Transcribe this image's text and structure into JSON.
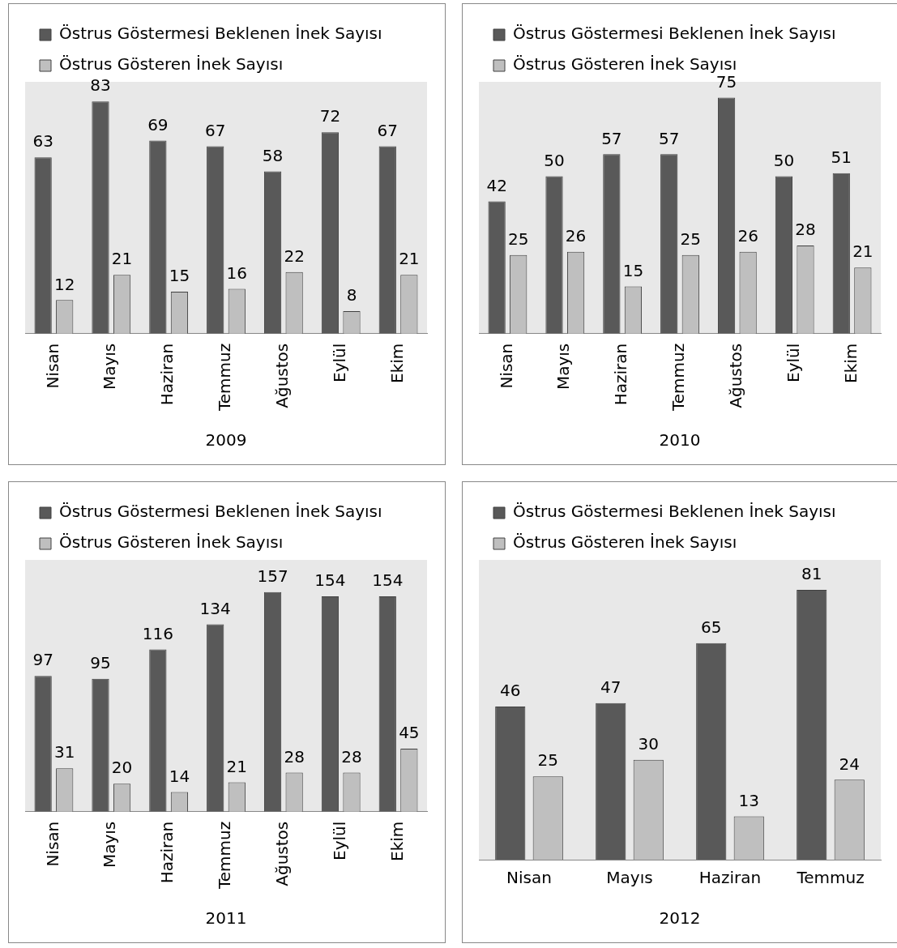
{
  "chart_data": [
    {
      "type": "bar",
      "xlabel": "2009",
      "categories": [
        "Nisan",
        "Mayıs",
        "Haziran",
        "Temmuz",
        "Ağustos",
        "Eylül",
        "Ekim"
      ],
      "series": [
        {
          "name": "Östrus Göstermesi Beklenen İnek Sayısı",
          "color": "#595959",
          "values": [
            63,
            83,
            69,
            67,
            58,
            72,
            67
          ]
        },
        {
          "name": "Östrus Gösteren İnek Sayısı",
          "color": "#bfbfbf",
          "values": [
            12,
            21,
            15,
            16,
            22,
            8,
            21
          ]
        }
      ],
      "data_labels": true,
      "legend": "top",
      "grid": false,
      "tick_labels": "x"
    },
    {
      "type": "bar",
      "xlabel": "2010",
      "categories": [
        "Nisan",
        "Mayıs",
        "Haziran",
        "Temmuz",
        "Ağustos",
        "Eylül",
        "Ekim"
      ],
      "series": [
        {
          "name": "Östrus Göstermesi Beklenen İnek Sayısı",
          "color": "#595959",
          "values": [
            42,
            50,
            57,
            57,
            75,
            50,
            51
          ]
        },
        {
          "name": "Östrus Gösteren İnek Sayısı",
          "color": "#bfbfbf",
          "values": [
            25,
            26,
            15,
            25,
            26,
            28,
            21
          ]
        }
      ],
      "data_labels": true,
      "legend": "top",
      "grid": false,
      "tick_labels": "x"
    },
    {
      "type": "bar",
      "xlabel": "2011",
      "categories": [
        "Nisan",
        "Mayıs",
        "Haziran",
        "Temmuz",
        "Ağustos",
        "Eylül",
        "Ekim"
      ],
      "series": [
        {
          "name": "Östrus Göstermesi Beklenen İnek Sayısı",
          "color": "#595959",
          "values": [
            97,
            95,
            116,
            134,
            157,
            154,
            154
          ]
        },
        {
          "name": "Östrus Gösteren İnek Sayısı",
          "color": "#bfbfbf",
          "values": [
            31,
            20,
            14,
            21,
            28,
            28,
            45
          ]
        }
      ],
      "data_labels": true,
      "legend": "top",
      "grid": false,
      "tick_labels": "x"
    },
    {
      "type": "bar",
      "xlabel": "2012",
      "categories": [
        "Nisan",
        "Mayıs",
        "Haziran",
        "Temmuz"
      ],
      "series": [
        {
          "name": "Östrus Göstermesi Beklenen İnek Sayısı",
          "color": "#595959",
          "values": [
            46,
            47,
            65,
            81
          ]
        },
        {
          "name": "Östrus Gösteren İnek Sayısı",
          "color": "#bfbfbf",
          "values": [
            25,
            30,
            13,
            24
          ]
        }
      ],
      "data_labels": true,
      "legend": "top",
      "grid": false,
      "tick_labels": "x"
    }
  ]
}
